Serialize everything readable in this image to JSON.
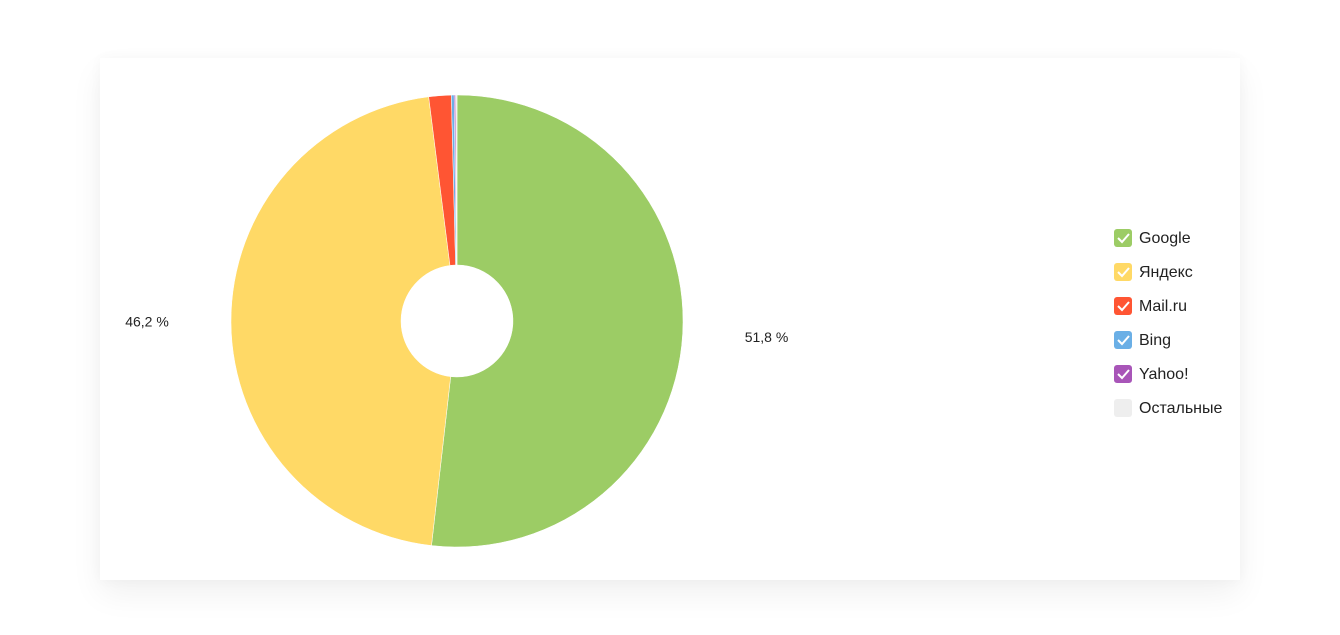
{
  "chart_data": {
    "type": "pie",
    "donut": true,
    "categories": [
      "Google",
      "Яндекс",
      "Mail.ru",
      "Bing",
      "Yahoo!",
      "Остальные"
    ],
    "values": [
      51.8,
      46.2,
      1.6,
      0.2,
      0.1,
      0.1
    ],
    "value_labels": [
      "51,8 %",
      "46,2 %",
      null,
      null,
      null,
      null
    ],
    "colors": [
      "#9ccc65",
      "#ffd966",
      "#ff5533",
      "#6aafe6",
      "#a855b8",
      "#eeeeee"
    ]
  }
}
